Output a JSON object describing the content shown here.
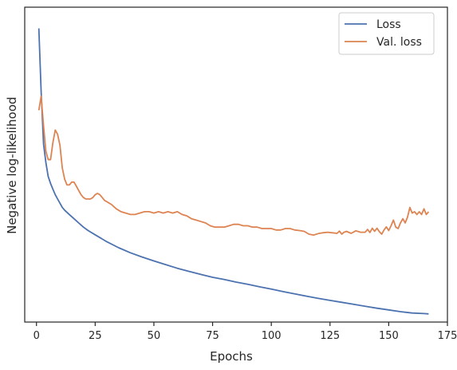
{
  "chart_data": {
    "type": "line",
    "xlabel": "Epochs",
    "ylabel": "Negative log-likelihood",
    "xlim": [
      -5,
      175
    ],
    "ylim": [
      0,
      100
    ],
    "xticks": [
      0,
      25,
      50,
      75,
      100,
      125,
      150,
      175
    ],
    "yticks_shown": false,
    "grid": false,
    "legend_position": "top-right",
    "series": [
      {
        "name": "Loss",
        "color": "#4c72b0",
        "x": [
          1,
          2,
          3,
          4,
          5,
          6,
          7,
          8,
          9,
          10,
          11,
          12,
          14,
          16,
          18,
          20,
          22,
          25,
          30,
          35,
          40,
          45,
          50,
          55,
          60,
          65,
          70,
          75,
          80,
          85,
          90,
          95,
          100,
          105,
          110,
          115,
          120,
          125,
          130,
          135,
          140,
          145,
          150,
          155,
          160,
          165,
          167
        ],
        "values": [
          97.6,
          75,
          56.5,
          50,
          45,
          42.5,
          40.5,
          38.5,
          37,
          35.5,
          34,
          33,
          31.5,
          30,
          28.5,
          27,
          25.8,
          24.3,
          21.8,
          19.7,
          17.9,
          16.4,
          15,
          13.7,
          12.4,
          11.3,
          10.2,
          9.2,
          8.4,
          7.5,
          6.7,
          5.8,
          5.0,
          4.1,
          3.3,
          2.5,
          1.7,
          1.0,
          0.3,
          -0.4,
          -1.1,
          -1.8,
          -2.4,
          -3.0,
          -3.5,
          -3.7,
          -3.8
        ]
      },
      {
        "name": "Val. loss",
        "color": "#dd8452",
        "x": [
          1,
          2,
          3,
          4,
          5,
          6,
          7,
          8,
          9,
          10,
          11,
          12,
          13,
          14,
          15,
          16,
          17,
          18,
          19,
          20,
          21,
          22,
          23,
          24,
          25,
          26,
          27,
          28,
          29,
          30,
          32,
          34,
          36,
          38,
          40,
          42,
          44,
          46,
          48,
          50,
          52,
          54,
          56,
          58,
          60,
          62,
          64,
          66,
          68,
          70,
          72,
          74,
          76,
          78,
          80,
          82,
          84,
          86,
          88,
          90,
          92,
          94,
          96,
          98,
          100,
          102,
          104,
          106,
          108,
          110,
          112,
          114,
          116,
          118,
          120,
          122,
          124,
          126,
          128,
          129,
          130,
          131,
          132,
          134,
          136,
          138,
          140,
          141,
          142,
          143,
          144,
          145,
          146,
          147,
          148,
          149,
          150,
          151,
          152,
          153,
          154,
          155,
          156,
          157,
          158,
          159,
          160,
          161,
          162,
          163,
          164,
          165,
          166,
          167
        ],
        "values": [
          68.5,
          73.5,
          63,
          54,
          51,
          51,
          57,
          61.5,
          60,
          56,
          48,
          44,
          42,
          42,
          43,
          43,
          41.5,
          40,
          38.5,
          37.5,
          37,
          37,
          37,
          37.5,
          38.5,
          39,
          38.5,
          37.5,
          36.5,
          36,
          35,
          33.5,
          32.5,
          32,
          31.5,
          31.5,
          32,
          32.5,
          32.5,
          32,
          32.5,
          32,
          32.5,
          32,
          32.5,
          31.5,
          31,
          30,
          29.5,
          29,
          28.5,
          27.5,
          27,
          27,
          27,
          27.5,
          28,
          28,
          27.5,
          27.5,
          27,
          27,
          26.5,
          26.5,
          26.5,
          26,
          26,
          26.5,
          26.5,
          26,
          25.8,
          25.5,
          24.5,
          24.2,
          24.7,
          25,
          25.2,
          25,
          24.8,
          25.6,
          24.5,
          25.2,
          25.5,
          24.8,
          25.7,
          25.2,
          25.2,
          26.2,
          25.1,
          26.6,
          25.5,
          26.6,
          25.4,
          24.5,
          26,
          27.1,
          25.8,
          27.5,
          29.5,
          27,
          26.5,
          28.5,
          30,
          28.5,
          30.5,
          34,
          32,
          32.5,
          31.5,
          32.5,
          31.5,
          33.5,
          31.5,
          32.5
        ]
      }
    ]
  }
}
